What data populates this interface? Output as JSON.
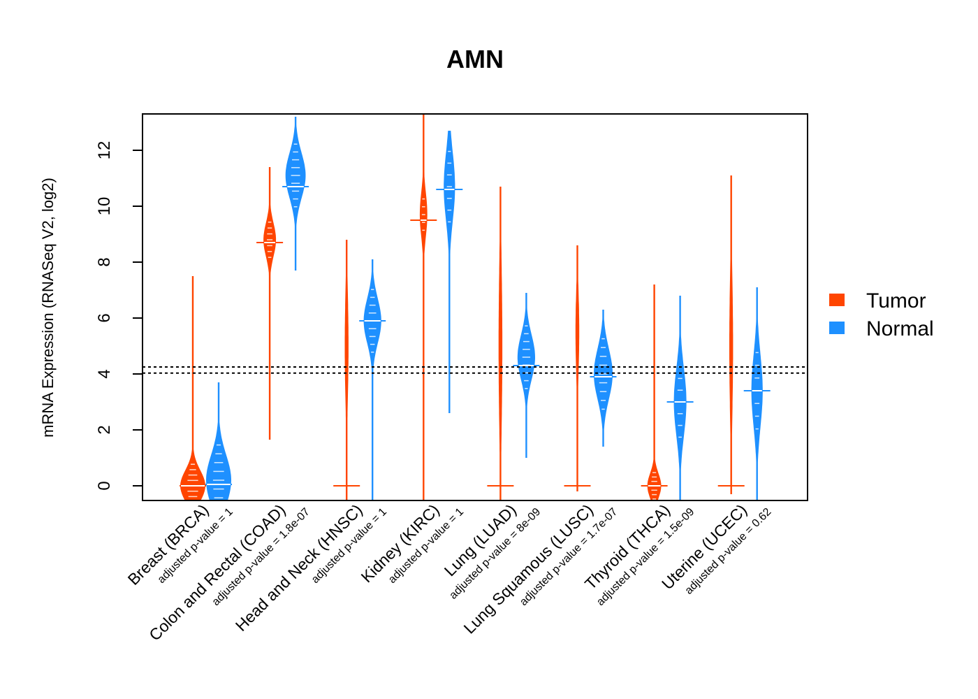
{
  "chart_data": {
    "type": "beanplot",
    "title": "AMN",
    "xlabel": "",
    "ylabel": "mRNA Expression (RNASeq V2, log2)",
    "ylim": [
      -0.5,
      13.3
    ],
    "yticks": [
      0,
      2,
      4,
      6,
      8,
      10,
      12
    ],
    "reference_lines": [
      4.25,
      4.03
    ],
    "legend": {
      "position": "right",
      "entries": [
        {
          "label": "Tumor",
          "color": "#FF4500"
        },
        {
          "label": "Normal",
          "color": "#1E90FF"
        }
      ]
    },
    "categories": [
      {
        "label": "Breast (BRCA)",
        "pvalue_label": "adjusted p-value = 1",
        "tumor": {
          "min": -0.5,
          "max": 7.5,
          "median": 0.0,
          "mode": 0.0,
          "sd": 0.55,
          "density": 1.0
        },
        "normal": {
          "min": -0.5,
          "max": 3.7,
          "median": 0.05,
          "mode": 0.2,
          "sd": 0.9,
          "density": 1.0
        }
      },
      {
        "label": "Colon and Rectal (COAD)",
        "pvalue_label": "adjusted p-value = 1.8e-07",
        "tumor": {
          "min": 1.65,
          "max": 11.4,
          "median": 8.7,
          "mode": 8.8,
          "sd": 0.6,
          "density": 0.5
        },
        "normal": {
          "min": 7.7,
          "max": 13.2,
          "median": 10.7,
          "mode": 11.1,
          "sd": 0.8,
          "density": 0.8
        }
      },
      {
        "label": "Head and Neck (HNSC)",
        "pvalue_label": "adjusted p-value = 1",
        "tumor": {
          "min": -0.5,
          "max": 8.8,
          "median": 0.0,
          "mode": 5.0,
          "sd": 2.0,
          "density": 0.15
        },
        "normal": {
          "min": -0.5,
          "max": 8.1,
          "median": 5.9,
          "mode": 5.9,
          "sd": 0.8,
          "density": 0.7
        }
      },
      {
        "label": "Kidney (KIRC)",
        "pvalue_label": "adjusted p-value = 1",
        "tumor": {
          "min": -0.5,
          "max": 13.3,
          "median": 9.5,
          "mode": 9.7,
          "sd": 0.8,
          "density": 0.3
        },
        "normal": {
          "min": 2.6,
          "max": 12.7,
          "median": 10.6,
          "mode": 10.7,
          "sd": 1.2,
          "density": 0.45
        }
      },
      {
        "label": "Lung (LUAD)",
        "pvalue_label": "adjusted p-value = 8e-09",
        "tumor": {
          "min": -0.5,
          "max": 10.7,
          "median": 0.0,
          "mode": 5.0,
          "sd": 3.0,
          "density": 0.15
        },
        "normal": {
          "min": 1.0,
          "max": 6.9,
          "median": 4.3,
          "mode": 4.6,
          "sd": 0.8,
          "density": 0.7
        }
      },
      {
        "label": "Lung Squamous (LUSC)",
        "pvalue_label": "adjusted p-value = 1.7e-07",
        "tumor": {
          "min": -0.2,
          "max": 8.6,
          "median": 0.0,
          "mode": 5.5,
          "sd": 1.5,
          "density": 0.15
        },
        "normal": {
          "min": 1.4,
          "max": 6.3,
          "median": 3.9,
          "mode": 4.0,
          "sd": 0.9,
          "density": 0.75
        }
      },
      {
        "label": "Thyroid (THCA)",
        "pvalue_label": "adjusted p-value = 1.5e-09",
        "tumor": {
          "min": -0.5,
          "max": 7.2,
          "median": 0.0,
          "mode": 0.0,
          "sd": 0.45,
          "density": 0.55
        },
        "normal": {
          "min": -0.5,
          "max": 6.8,
          "median": 3.0,
          "mode": 3.0,
          "sd": 1.2,
          "density": 0.5
        }
      },
      {
        "label": "Uterine (UCEC)",
        "pvalue_label": "adjusted p-value = 0.62",
        "tumor": {
          "min": -0.3,
          "max": 11.1,
          "median": 0.0,
          "mode": 5.0,
          "sd": 2.5,
          "density": 0.15
        },
        "normal": {
          "min": -0.5,
          "max": 7.1,
          "median": 3.4,
          "mode": 3.4,
          "sd": 1.3,
          "density": 0.45
        }
      }
    ]
  }
}
